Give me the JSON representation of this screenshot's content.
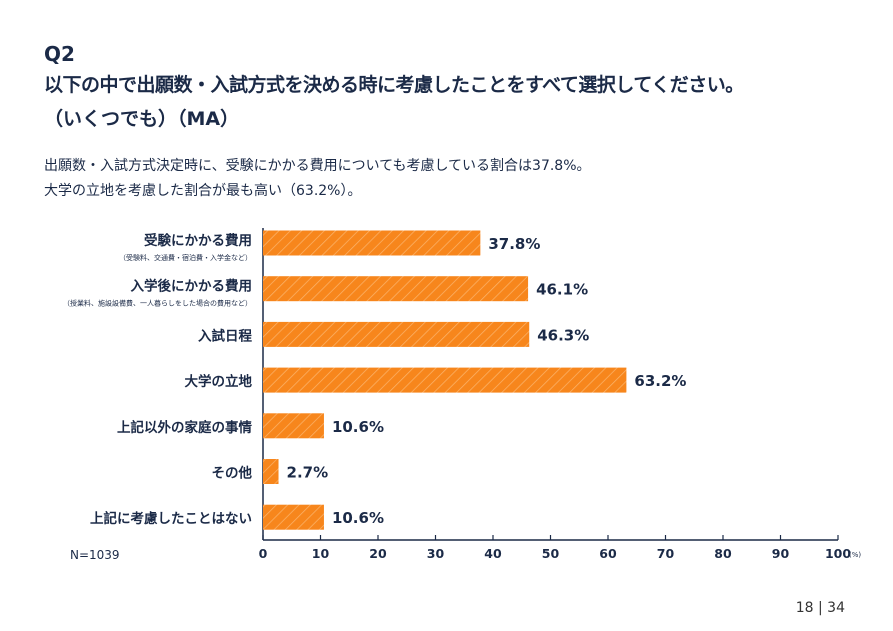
{
  "question_number": "Q2",
  "title_line1": "以下の中で出願数・入試方式を決める時に考慮したことをすべて選択してください。",
  "title_line2": "（いくつでも）（MA）",
  "summary_line1": "出願数・入試方式決定時に、受験にかかる費用についても考慮している割合は37.8%。",
  "summary_line2": "大学の立地を考慮した割合が最も高い（63.2%）。",
  "sample_size": "N=1039",
  "page_number": "18 | 34",
  "colors": {
    "bar": "#F7861C",
    "hatch": "#FBB36A",
    "text": "#1B2A47"
  },
  "chart_data": {
    "type": "bar",
    "orientation": "horizontal",
    "categories": [
      "受験にかかる費用",
      "入学後にかかる費用",
      "入試日程",
      "大学の立地",
      "上記以外の家庭の事情",
      "その他",
      "上記に考慮したことはない"
    ],
    "sublabels": [
      "（受験料、交通費・宿泊費・入学金など）",
      "（授業料、施設設備費、一人暮らしをした場合の費用など）",
      "",
      "",
      "",
      "",
      ""
    ],
    "values": [
      37.8,
      46.1,
      46.3,
      63.2,
      10.6,
      2.7,
      10.6
    ],
    "value_labels": [
      "37.8%",
      "46.1%",
      "46.3%",
      "63.2%",
      "10.6%",
      "2.7%",
      "10.6%"
    ],
    "xlim": [
      0,
      100
    ],
    "xticks": [
      "0",
      "10",
      "20",
      "30",
      "40",
      "50",
      "60",
      "70",
      "80",
      "90",
      "100"
    ],
    "xunit": "(%)"
  }
}
